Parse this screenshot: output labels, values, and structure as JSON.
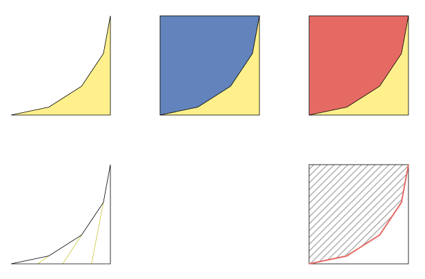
{
  "colors": {
    "background": "#ffffff",
    "curve_fill": "#fff08c",
    "area_above_blue": "#6283bb",
    "area_above_red": "#e56a64",
    "outline": "#000000",
    "hatch": "#9e9e9e",
    "red_curve": "#e56a64",
    "tick_lines": "#c8c83a"
  },
  "curve": [
    [
      0,
      0
    ],
    [
      0.38,
      0.08
    ],
    [
      0.71,
      0.29
    ],
    [
      0.93,
      0.62
    ],
    [
      1,
      1
    ]
  ],
  "panels": [
    {
      "name": "panel-yellow-area",
      "variant": "fill-below"
    },
    {
      "name": "panel-blue-above",
      "variant": "fill-above-blue"
    },
    {
      "name": "panel-red-above",
      "variant": "fill-above-red"
    },
    {
      "name": "panel-outline-ticks",
      "variant": "outline-ticks"
    },
    {
      "name": "panel-empty",
      "variant": "empty"
    },
    {
      "name": "panel-hatched-above",
      "variant": "hatched-above"
    }
  ]
}
